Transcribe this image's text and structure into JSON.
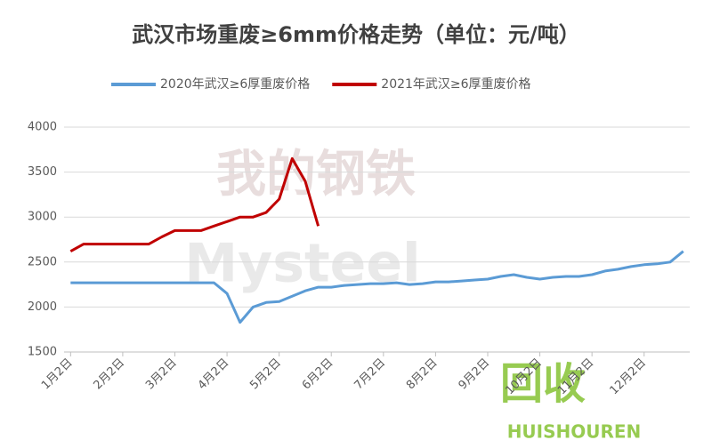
{
  "chart_data": {
    "type": "line",
    "title": "武汉市场重废≥6mm价格走势（单位：元/吨）",
    "watermarks": [
      "我的钢铁",
      "Mysteel",
      "回收",
      "HUISHOUREN"
    ],
    "categories": [
      "1月2日",
      null,
      null,
      null,
      "2月2日",
      null,
      null,
      null,
      "3月2日",
      null,
      null,
      null,
      "4月2日",
      null,
      null,
      null,
      "5月2日",
      null,
      null,
      null,
      "6月2日",
      null,
      null,
      null,
      "7月2日",
      null,
      null,
      null,
      "8月2日",
      null,
      null,
      null,
      "9月2日",
      null,
      null,
      null,
      "10月2日",
      null,
      null,
      null,
      "11月2日",
      null,
      null,
      null,
      "12月2日",
      null,
      null,
      null
    ],
    "series": [
      {
        "name": "2020年武汉≥6厚重废价格",
        "color": "#5b9bd5",
        "values": [
          2270,
          2270,
          2270,
          2270,
          2270,
          2270,
          2270,
          2270,
          2270,
          2270,
          2270,
          2270,
          2150,
          1830,
          2000,
          2050,
          2060,
          2120,
          2180,
          2220,
          2220,
          2240,
          2250,
          2260,
          2260,
          2270,
          2250,
          2260,
          2280,
          2280,
          2290,
          2300,
          2310,
          2340,
          2360,
          2330,
          2310,
          2330,
          2340,
          2340,
          2360,
          2400,
          2420,
          2450,
          2470,
          2480,
          2500,
          2620
        ]
      },
      {
        "name": "2021年武汉≥6厚重废价格",
        "color": "#c00000",
        "values": [
          2620,
          2700,
          2700,
          2700,
          2700,
          2700,
          2700,
          2780,
          2850,
          2850,
          2850,
          2900,
          2950,
          3000,
          3000,
          3050,
          3200,
          3650,
          3400,
          2900,
          null,
          null,
          null,
          null,
          null,
          null,
          null,
          null,
          null,
          null,
          null,
          null,
          null,
          null,
          null,
          null,
          null,
          null,
          null,
          null,
          null,
          null,
          null,
          null,
          null,
          null,
          null,
          null
        ]
      }
    ],
    "ylim": [
      1500,
      4000
    ],
    "yticks": [
      1500,
      2000,
      2500,
      3000,
      3500,
      4000
    ],
    "grid": true
  }
}
